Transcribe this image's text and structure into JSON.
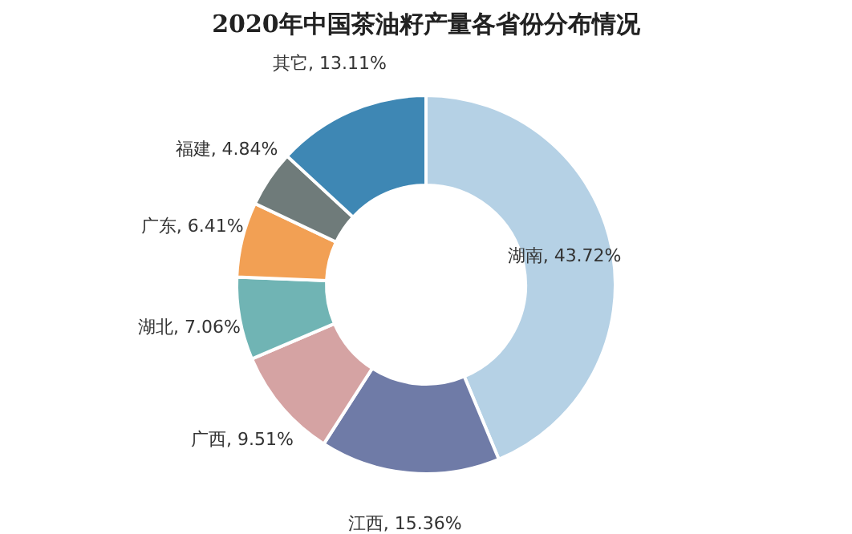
{
  "chart_data": {
    "type": "donut",
    "title": "2020年中国茶油籽产量各省份分布情况",
    "categories": [
      "湖南",
      "江西",
      "广西",
      "湖北",
      "广东",
      "福建",
      "其它"
    ],
    "values": [
      43.72,
      15.36,
      9.51,
      7.06,
      6.41,
      4.84,
      13.11
    ],
    "value_labels": [
      ", 43.72%",
      ", 15.36%",
      ", 9.51%",
      ", 7.06%",
      ", 6.41%",
      ", 4.84%",
      ", 13.11%"
    ],
    "colors": [
      "#b5d1e5",
      "#6f7ba7",
      "#d5a3a3",
      "#70b4b4",
      "#f2a054",
      "#6f7b7a",
      "#3e87b4"
    ],
    "legend": false
  }
}
